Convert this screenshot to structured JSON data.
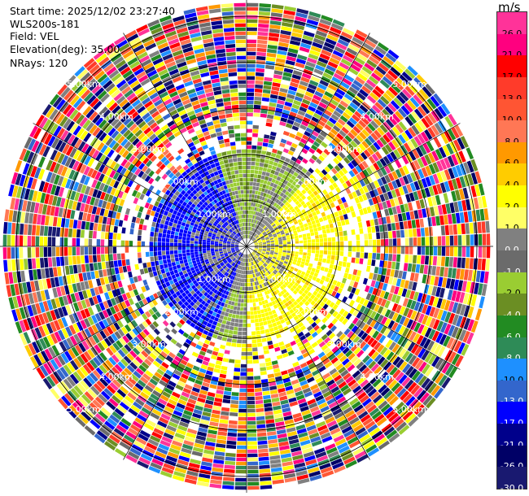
{
  "plot": {
    "start_time": "Start time: 2025/12/02 23:27:40",
    "instrument": "WLS200s-181",
    "field": "Field: VEL",
    "elevation": "Elevation(deg): 35.00",
    "nrays": "NRays: 120"
  },
  "range_rings": [
    {
      "label": "1.00km",
      "km": 1
    },
    {
      "label": "2.00km",
      "km": 2
    },
    {
      "label": "3.00km",
      "km": 3
    },
    {
      "label": "4.00km",
      "km": 4
    },
    {
      "label": "5.00km",
      "km": 5
    }
  ],
  "colorbar": {
    "unit": "m/s",
    "levels": [
      {
        "label": "26.0",
        "color": "#ff3399"
      },
      {
        "label": "21.0",
        "color": "#ff007f"
      },
      {
        "label": "17.0",
        "color": "#ff0000"
      },
      {
        "label": "13.0",
        "color": "#ff3b2a"
      },
      {
        "label": "10.0",
        "color": "#ff5533"
      },
      {
        "label": "8.0",
        "color": "#ff7755"
      },
      {
        "label": "6.0",
        "color": "#ff9900"
      },
      {
        "label": "4.0",
        "color": "#ffcc00"
      },
      {
        "label": "2.0",
        "color": "#ffff00"
      },
      {
        "label": "1.0",
        "color": "#ffff66"
      },
      {
        "label": "0.0",
        "color": "#808080"
      },
      {
        "label": "-1.0",
        "color": "#6b6b6b"
      },
      {
        "label": "-2.0",
        "color": "#9acd32"
      },
      {
        "label": "-4.0",
        "color": "#6b8e23"
      },
      {
        "label": "-6.0",
        "color": "#228b22"
      },
      {
        "label": "-8.0",
        "color": "#2e8b57"
      },
      {
        "label": "-10.0",
        "color": "#1e90ff"
      },
      {
        "label": "-13.0",
        "color": "#3366cc"
      },
      {
        "label": "-17.0",
        "color": "#0000ff"
      },
      {
        "label": "-21.0",
        "color": "#00008b"
      },
      {
        "label": "-26.0",
        "color": "#000066"
      },
      {
        "label": "-30.0",
        "color": "#191970"
      }
    ]
  }
}
